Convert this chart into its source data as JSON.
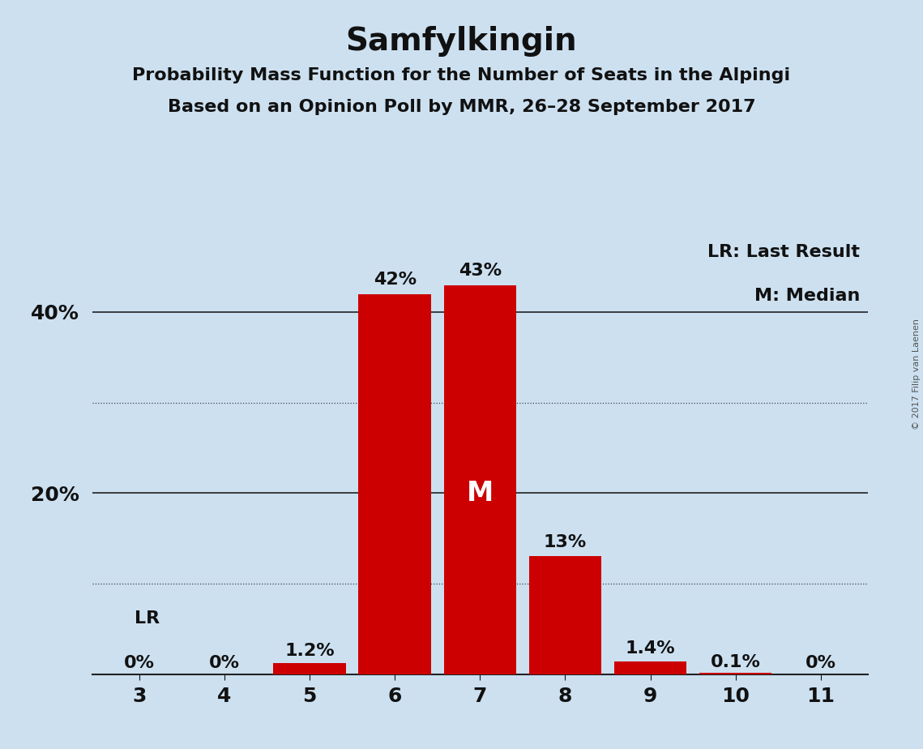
{
  "title": "Samfylkingin",
  "subtitle1": "Probability Mass Function for the Number of Seats in the Alpingi",
  "subtitle2": "Based on an Opinion Poll by MMR, 26–28 September 2017",
  "copyright": "© 2017 Filip van Laenen",
  "legend_line1": "LR: Last Result",
  "legend_line2": "M: Median",
  "lr_label": "LR",
  "lr_seat": 3,
  "median_seat": 7,
  "seats": [
    3,
    4,
    5,
    6,
    7,
    8,
    9,
    10,
    11
  ],
  "values": [
    0.0,
    0.0,
    1.2,
    42.0,
    43.0,
    13.0,
    1.4,
    0.1,
    0.0
  ],
  "labels": [
    "0%",
    "0%",
    "1.2%",
    "42%",
    "43%",
    "13%",
    "1.4%",
    "0.1%",
    "0%"
  ],
  "bar_color": "#cc0000",
  "bg_color": "#cce0f0",
  "text_color": "#111111",
  "median_label_color": "#ffffff",
  "ylim": [
    0,
    48
  ],
  "ytick_positions": [
    20,
    40
  ],
  "ytick_labels": [
    "20%",
    "40%"
  ],
  "solid_gridlines": [
    20,
    40
  ],
  "dotted_gridlines": [
    10,
    30
  ],
  "title_fontsize": 28,
  "subtitle_fontsize": 16,
  "label_fontsize": 16,
  "tick_fontsize": 18,
  "legend_fontsize": 16,
  "median_fontsize": 24,
  "lr_fontsize": 16,
  "copyright_fontsize": 8
}
